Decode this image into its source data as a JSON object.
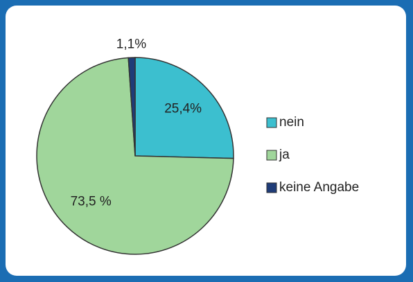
{
  "chart_data": {
    "type": "pie",
    "categories": [
      "nein",
      "ja",
      "keine Angabe"
    ],
    "values": [
      25.4,
      73.5,
      1.1
    ],
    "value_labels": [
      "25,4%",
      "73,5 %",
      "1,1%"
    ],
    "colors": [
      "#3cbfcf",
      "#a0d69b",
      "#1f3c78"
    ],
    "legend": "right"
  }
}
